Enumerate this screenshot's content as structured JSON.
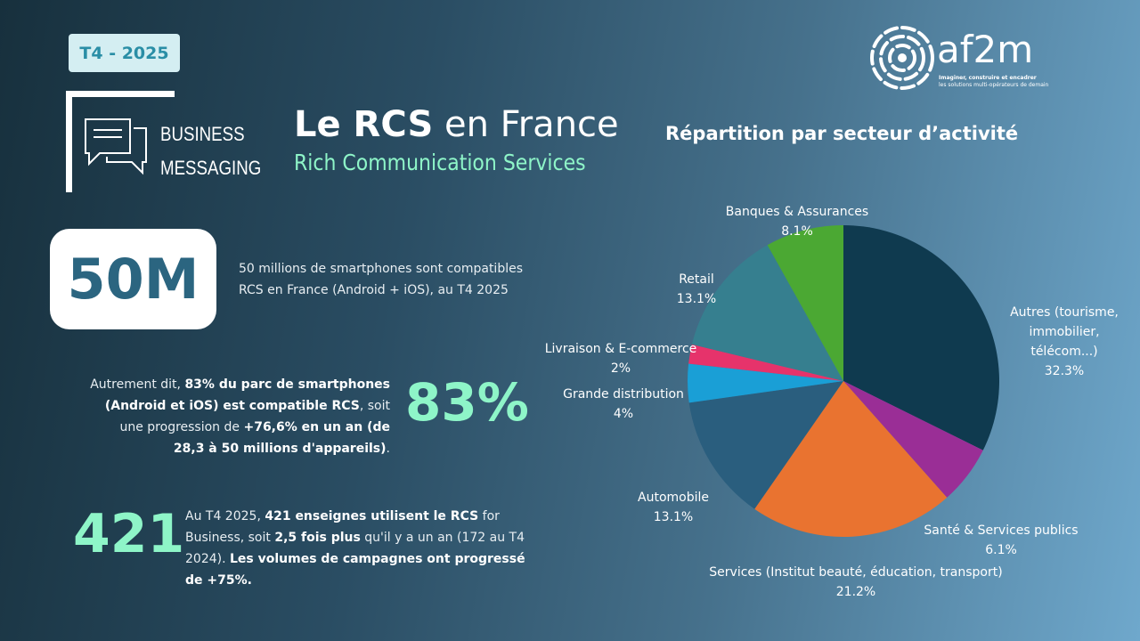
{
  "badge": "T4 - 2025",
  "header": {
    "line1": "BUSINESS",
    "line2": "MESSAGING",
    "title_bold": "Le RCS",
    "title_rest": " en France",
    "subtitle": "Rich Communication Services"
  },
  "logo": {
    "name": "af2m",
    "tagline1": "Imaginer, construire et encadrer",
    "tagline2": "les solutions multi-opérateurs de demain"
  },
  "stats": {
    "s50": {
      "value": "50M",
      "text": [
        {
          "t": "50 millions de smartphones sont compatibles RCS en France (Android + iOS), au T4 2025",
          "b": false
        }
      ]
    },
    "s83": {
      "value": "83%",
      "text": [
        {
          "t": "Autrement dit, ",
          "b": false
        },
        {
          "t": "83% du parc de smartphones (Android et iOS) est compatible RCS",
          "b": true
        },
        {
          "t": ", soit une progression de ",
          "b": false
        },
        {
          "t": "+76,6% en un an (de 28,3 à 50 millions d'appareils)",
          "b": true
        },
        {
          "t": ".",
          "b": false
        }
      ]
    },
    "s421": {
      "value": "421",
      "text": [
        {
          "t": "Au T4 2025, ",
          "b": false
        },
        {
          "t": "421 enseignes utilisent le RCS",
          "b": true
        },
        {
          "t": " for Business, soit ",
          "b": false
        },
        {
          "t": "2,5 fois plus",
          "b": true
        },
        {
          "t": " qu'il y a un an (172 au T4 2024). ",
          "b": false
        },
        {
          "t": "Les volumes de campagnes ont progressé de +75%.",
          "b": true
        }
      ]
    }
  },
  "chart_data": {
    "type": "pie",
    "title": "Répartition par secteur d’activité",
    "slices": [
      {
        "label": "Autres (tourisme, immobilier, télécom...)",
        "value": 32.3,
        "display": "32.3%",
        "color": "#0f3a4f"
      },
      {
        "label": "Santé & Services publics",
        "value": 6.1,
        "display": "6.1%",
        "color": "#9a2e96"
      },
      {
        "label": "Services (Institut beauté, éducation, transport)",
        "value": 21.2,
        "display": "21.2%",
        "color": "#e97330"
      },
      {
        "label": "Automobile",
        "value": 13.1,
        "display": "13.1%",
        "color": "#2a5e7e"
      },
      {
        "label": "Grande distribution",
        "value": 4,
        "display": "4%",
        "color": "#1a9fd6"
      },
      {
        "label": "Livraison & E-commerce",
        "value": 2,
        "display": "2%",
        "color": "#e6336b"
      },
      {
        "label": "Retail",
        "value": 13.1,
        "display": "13.1%",
        "color": "#367f8f"
      },
      {
        "label": "Banques & Assurances",
        "value": 8.1,
        "display": "8.1%",
        "color": "#4ba833"
      }
    ],
    "legend": "none"
  }
}
